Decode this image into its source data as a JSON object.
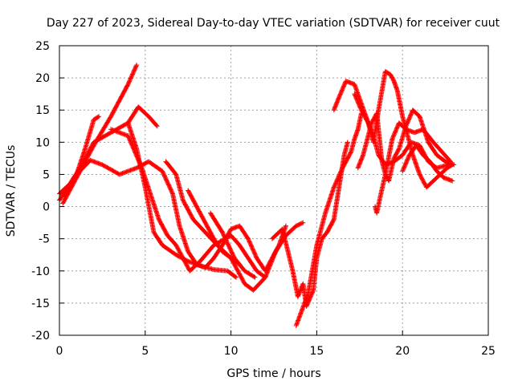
{
  "chart_data": {
    "type": "scatter",
    "title": "Day 227 of 2023, Sidereal Day-to-day VTEC variation (SDTVAR) for receiver cuut",
    "xlabel": "GPS time / hours",
    "ylabel": "SDTVAR / TECUs",
    "xlim": [
      0,
      25
    ],
    "ylim": [
      -20,
      25
    ],
    "xticks": [
      "0",
      "5",
      "10",
      "15",
      "20",
      "25"
    ],
    "yticks": [
      "-20",
      "-15",
      "-10",
      "-5",
      "0",
      "5",
      "10",
      "15",
      "20",
      "25"
    ],
    "grid": true,
    "marker": "+",
    "color": "#ff0000",
    "series": [
      {
        "values": [
          [
            0.0,
            1.0
          ],
          [
            0.5,
            3.0
          ],
          [
            1.0,
            5.0
          ],
          [
            1.5,
            9.0
          ],
          [
            2.0,
            13.5
          ],
          [
            2.3,
            14.0
          ]
        ]
      },
      {
        "values": [
          [
            0.0,
            2.0
          ],
          [
            0.6,
            3.5
          ],
          [
            1.2,
            6.0
          ],
          [
            2.0,
            10.0
          ],
          [
            3.0,
            11.5
          ],
          [
            4.0,
            13.0
          ],
          [
            4.6,
            15.5
          ],
          [
            5.2,
            14.0
          ],
          [
            5.7,
            12.5
          ]
        ]
      },
      {
        "values": [
          [
            0.2,
            0.5
          ],
          [
            1.0,
            4.5
          ],
          [
            2.0,
            9.5
          ],
          [
            3.0,
            14.0
          ],
          [
            3.5,
            16.5
          ],
          [
            4.0,
            19.0
          ],
          [
            4.5,
            22.0
          ]
        ]
      },
      {
        "values": [
          [
            0.3,
            1.5
          ],
          [
            1.0,
            5.0
          ],
          [
            1.8,
            7.2
          ],
          [
            2.5,
            6.5
          ],
          [
            3.5,
            5.0
          ],
          [
            4.5,
            6.0
          ],
          [
            5.2,
            7.0
          ],
          [
            6.0,
            5.5
          ],
          [
            6.6,
            2.0
          ],
          [
            7.0,
            -3.0
          ],
          [
            7.5,
            -7.0
          ],
          [
            8.0,
            -9.0
          ],
          [
            9.0,
            -9.8
          ],
          [
            9.8,
            -10.0
          ],
          [
            10.3,
            -11.0
          ]
        ]
      },
      {
        "values": [
          [
            3.0,
            12.0
          ],
          [
            4.0,
            11.0
          ],
          [
            4.8,
            6.0
          ],
          [
            5.3,
            2.0
          ],
          [
            5.8,
            -2.0
          ],
          [
            6.3,
            -4.5
          ],
          [
            6.8,
            -6.0
          ],
          [
            7.2,
            -8.0
          ],
          [
            7.6,
            -10.0
          ],
          [
            8.2,
            -8.5
          ],
          [
            9.0,
            -6.0
          ],
          [
            10.0,
            -4.5
          ],
          [
            10.5,
            -6.0
          ],
          [
            11.0,
            -8.0
          ],
          [
            11.5,
            -10.0
          ],
          [
            12.0,
            -11.0
          ]
        ]
      },
      {
        "values": [
          [
            4.0,
            13.0
          ],
          [
            4.5,
            9.0
          ],
          [
            5.0,
            3.0
          ],
          [
            5.5,
            -4.0
          ],
          [
            6.0,
            -6.0
          ],
          [
            6.8,
            -7.5
          ],
          [
            7.5,
            -8.5
          ],
          [
            8.5,
            -9.5
          ],
          [
            9.0,
            -8.0
          ],
          [
            9.5,
            -6.0
          ],
          [
            10.0,
            -3.5
          ],
          [
            10.5,
            -3.0
          ],
          [
            11.0,
            -5.0
          ],
          [
            11.5,
            -8.0
          ],
          [
            12.0,
            -10.0
          ],
          [
            12.8,
            -6.0
          ],
          [
            13.2,
            -3.0
          ]
        ]
      },
      {
        "values": [
          [
            6.2,
            7.0
          ],
          [
            6.8,
            5.0
          ],
          [
            7.2,
            1.0
          ],
          [
            7.8,
            -2.0
          ],
          [
            8.5,
            -4.0
          ],
          [
            9.2,
            -6.0
          ],
          [
            10.0,
            -8.0
          ],
          [
            10.8,
            -12.0
          ],
          [
            11.3,
            -13.0
          ],
          [
            12.0,
            -11.0
          ],
          [
            12.6,
            -7.0
          ],
          [
            13.2,
            -4.5
          ],
          [
            13.8,
            -3.0
          ],
          [
            14.2,
            -2.5
          ]
        ]
      },
      {
        "values": [
          [
            7.5,
            2.5
          ],
          [
            8.0,
            0.0
          ],
          [
            8.5,
            -2.5
          ],
          [
            9.0,
            -5.0
          ],
          [
            9.5,
            -7.0
          ],
          [
            10.0,
            -8.0
          ],
          [
            10.5,
            -9.0
          ]
        ]
      },
      {
        "values": [
          [
            8.8,
            -1.0
          ],
          [
            9.5,
            -4.0
          ],
          [
            10.2,
            -8.0
          ],
          [
            10.8,
            -10.0
          ],
          [
            11.4,
            -11.0
          ]
        ]
      },
      {
        "values": [
          [
            12.4,
            -5.0
          ],
          [
            13.0,
            -3.5
          ],
          [
            13.6,
            -10.0
          ],
          [
            13.9,
            -14.0
          ],
          [
            14.2,
            -12.0
          ],
          [
            14.4,
            -15.5
          ],
          [
            14.8,
            -13.0
          ],
          [
            15.0,
            -8.0
          ],
          [
            15.3,
            -5.0
          ],
          [
            15.6,
            -4.0
          ],
          [
            15.8,
            -3.0
          ],
          [
            16.0,
            -2.0
          ],
          [
            16.3,
            3.0
          ],
          [
            16.6,
            8.0
          ],
          [
            16.8,
            10.0
          ]
        ]
      },
      {
        "values": [
          [
            13.8,
            -18.5
          ],
          [
            14.5,
            -13.5
          ],
          [
            15.0,
            -6.0
          ],
          [
            15.5,
            -1.0
          ],
          [
            16.0,
            3.0
          ],
          [
            16.5,
            6.0
          ],
          [
            17.0,
            8.5
          ],
          [
            17.2,
            10.5
          ],
          [
            17.4,
            12.0
          ],
          [
            17.6,
            14.5
          ]
        ]
      },
      {
        "values": [
          [
            16.0,
            15.0
          ],
          [
            16.3,
            17.0
          ],
          [
            16.7,
            19.5
          ],
          [
            17.2,
            19.0
          ],
          [
            17.8,
            14.5
          ],
          [
            18.3,
            11.0
          ],
          [
            18.6,
            8.0
          ],
          [
            19.0,
            6.5
          ],
          [
            19.5,
            7.0
          ],
          [
            20.0,
            8.0
          ],
          [
            20.5,
            10.0
          ],
          [
            21.0,
            9.5
          ],
          [
            21.5,
            7.0
          ],
          [
            22.0,
            6.0
          ],
          [
            22.7,
            6.5
          ]
        ]
      },
      {
        "values": [
          [
            17.4,
            6.0
          ],
          [
            17.7,
            8.0
          ],
          [
            18.0,
            11.0
          ],
          [
            18.2,
            13.0
          ],
          [
            18.5,
            14.5
          ],
          [
            18.8,
            7.0
          ],
          [
            19.0,
            5.0
          ],
          [
            19.2,
            4.0
          ],
          [
            19.5,
            7.5
          ],
          [
            19.8,
            9.0
          ],
          [
            20.2,
            12.5
          ],
          [
            20.6,
            15.0
          ],
          [
            21.0,
            14.0
          ],
          [
            21.5,
            10.0
          ],
          [
            22.0,
            8.0
          ],
          [
            22.5,
            7.0
          ],
          [
            23.0,
            6.5
          ]
        ]
      },
      {
        "values": [
          [
            18.4,
            0.0
          ],
          [
            18.5,
            -1.0
          ],
          [
            18.7,
            1.5
          ],
          [
            19.0,
            5.0
          ],
          [
            19.4,
            10.5
          ],
          [
            19.8,
            13.0
          ],
          [
            20.2,
            12.0
          ],
          [
            20.7,
            11.5
          ],
          [
            21.2,
            12.0
          ],
          [
            21.8,
            10.0
          ],
          [
            22.3,
            8.5
          ],
          [
            22.8,
            7.0
          ]
        ]
      },
      {
        "values": [
          [
            17.2,
            17.5
          ],
          [
            17.6,
            15.0
          ],
          [
            18.0,
            13.0
          ],
          [
            18.3,
            10.0
          ],
          [
            18.6,
            15.0
          ],
          [
            19.0,
            21.0
          ],
          [
            19.3,
            20.5
          ],
          [
            19.5,
            19.5
          ],
          [
            19.7,
            18.0
          ],
          [
            20.0,
            14.0
          ],
          [
            20.3,
            11.0
          ],
          [
            20.6,
            8.0
          ],
          [
            21.0,
            5.0
          ],
          [
            21.4,
            3.0
          ],
          [
            21.8,
            4.0
          ],
          [
            22.2,
            5.0
          ],
          [
            22.6,
            6.0
          ],
          [
            22.9,
            6.5
          ]
        ]
      },
      {
        "values": [
          [
            20.0,
            5.5
          ],
          [
            20.4,
            8.0
          ],
          [
            20.8,
            9.5
          ],
          [
            21.2,
            8.0
          ],
          [
            21.6,
            7.0
          ],
          [
            22.0,
            5.5
          ],
          [
            22.4,
            4.5
          ],
          [
            22.9,
            4.0
          ]
        ]
      }
    ]
  }
}
